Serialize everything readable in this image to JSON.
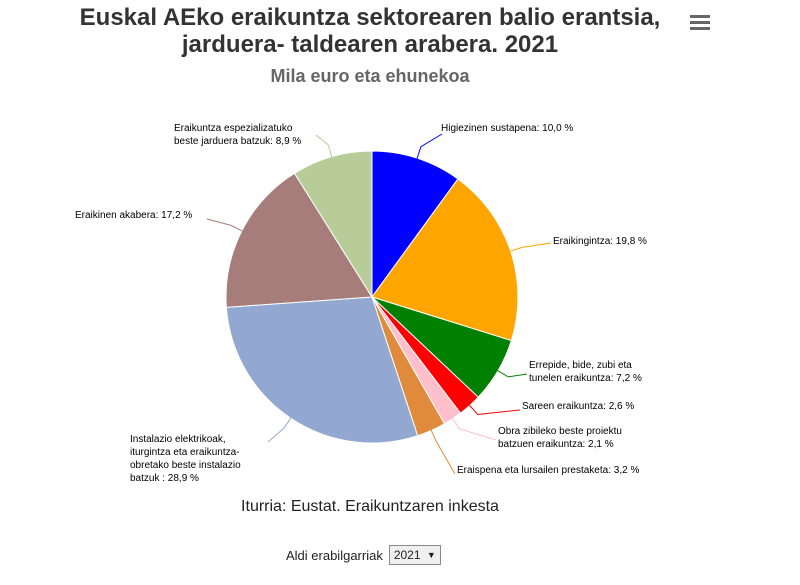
{
  "title_line1": "Euskal AEko eraikuntza sektorearen balio erantsia,",
  "title_line2": "jarduera- taldearen arabera. 2021",
  "menu_icon": "hamburger-menu-icon",
  "source": "Iturria: Eustat. Eraikuntzaren inkesta",
  "year_selector": {
    "label": "Aldi erabilgarriak",
    "selected": "2021",
    "caret_icon": "caret-down-icon"
  },
  "chart_data": {
    "type": "pie",
    "title": "Euskal AEko eraikuntza sektorearen balio erantsia, jarduera- taldearen arabera. 2021",
    "subtitle": "Mila euro eta ehunekoa",
    "slices": [
      {
        "label": [
          "Higiezinen sustapena: 10,0 %"
        ],
        "value": 10.0,
        "color": "#0000ff"
      },
      {
        "label": [
          "Eraikingintza: 19,8 %"
        ],
        "value": 19.8,
        "color": "#ffa500"
      },
      {
        "label": [
          "Errepide, bide, zubi eta",
          "tunelen eraikuntza: 7,2 %"
        ],
        "value": 7.2,
        "color": "#008000"
      },
      {
        "label": [
          "Sareen eraikuntza: 2,6 %"
        ],
        "value": 2.6,
        "color": "#ff0000"
      },
      {
        "label": [
          "Obra zibileko beste proiektu",
          "batzuen eraikuntza: 2,1 %"
        ],
        "value": 2.1,
        "color": "#ffc0cb"
      },
      {
        "label": [
          "Eraispena eta lursailen prestaketa: 3,2 %"
        ],
        "value": 3.2,
        "color": "#e08a3c"
      },
      {
        "label": [
          "Instalazio elektrikoak,",
          "iturgintza eta eraikuntza-",
          "obretako beste instalazio",
          "batzuk : 28,9 %"
        ],
        "value": 28.9,
        "color": "#92a8d1"
      },
      {
        "label": [
          "Eraikinen akabera: 17,2 %"
        ],
        "value": 17.2,
        "color": "#a67d7a"
      },
      {
        "label": [
          "Eraikuntza espezializatuko",
          "beste jarduera batzuk: 8,9 %"
        ],
        "value": 8.9,
        "color": "#b7cc98"
      }
    ]
  }
}
